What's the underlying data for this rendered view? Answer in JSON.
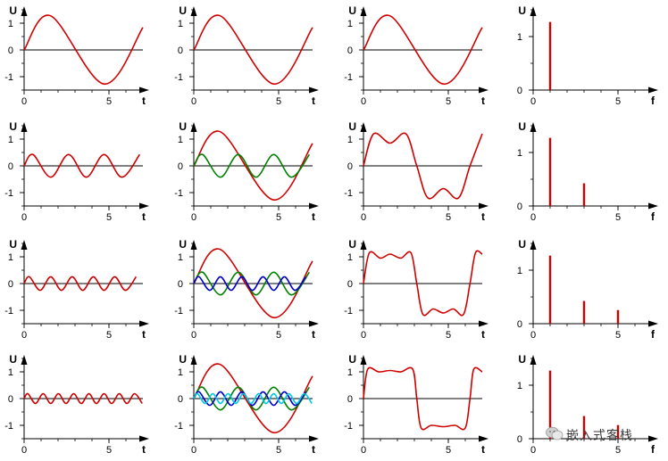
{
  "chart_data": [
    {
      "type": "line",
      "xlabel": "t",
      "ylabel": "U",
      "x_ticks": [
        0,
        5
      ],
      "y_ticks": [
        -1,
        0,
        1
      ],
      "xlim": [
        0,
        7
      ],
      "ylim": [
        -1.5,
        1.5
      ],
      "series": [
        {
          "color": "#d00000",
          "values": [
            [
              0,
              0
            ],
            [
              1.57,
              1.273
            ],
            [
              4.71,
              -1.273
            ],
            [
              7,
              0.84
            ]
          ]
        }
      ]
    },
    {
      "type": "line",
      "xlabel": "t",
      "ylabel": "U",
      "x_ticks": [
        0,
        5
      ],
      "y_ticks": [
        -1,
        0,
        1
      ],
      "xlim": [
        0,
        7
      ],
      "ylim": [
        -1.5,
        1.5
      ],
      "series": [
        {
          "color": "#d00000",
          "values": [
            [
              0,
              0
            ],
            [
              1.57,
              1.273
            ],
            [
              4.71,
              -1.273
            ],
            [
              7,
              0.84
            ]
          ]
        }
      ]
    },
    {
      "type": "line",
      "xlabel": "t",
      "ylabel": "U",
      "x_ticks": [
        0,
        5
      ],
      "y_ticks": [
        -1,
        0,
        1
      ],
      "xlim": [
        0,
        7
      ],
      "ylim": [
        -1.5,
        1.5
      ],
      "series": [
        {
          "color": "#d00000",
          "values": [
            [
              0,
              0
            ],
            [
              1.57,
              1.273
            ],
            [
              4.71,
              -1.273
            ],
            [
              7,
              0.84
            ]
          ]
        }
      ]
    },
    {
      "type": "bar",
      "xlabel": "f",
      "ylabel": "U",
      "x_ticks": [
        0,
        5
      ],
      "y_ticks": [
        0,
        1
      ],
      "xlim": [
        0,
        7
      ],
      "ylim": [
        0,
        1.5
      ],
      "series": [
        {
          "color": "#d00000",
          "values": [
            [
              1,
              1.273
            ]
          ]
        }
      ]
    },
    {
      "type": "line",
      "xlabel": "t",
      "ylabel": "U",
      "x_ticks": [
        0,
        5
      ],
      "y_ticks": [
        -1,
        0,
        1
      ],
      "xlim": [
        0,
        7
      ],
      "ylim": [
        -1.5,
        1.5
      ],
      "series": [
        {
          "color": "#d00000",
          "values": [
            [
              0,
              0
            ],
            [
              0.52,
              0.424
            ],
            [
              1.57,
              -0.424
            ],
            [
              2.62,
              0.424
            ],
            [
              3.67,
              -0.424
            ],
            [
              4.71,
              0.424
            ],
            [
              5.76,
              -0.424
            ],
            [
              6.81,
              0.424
            ]
          ]
        }
      ]
    },
    {
      "type": "line",
      "xlabel": "t",
      "ylabel": "U",
      "x_ticks": [
        0,
        5
      ],
      "y_ticks": [
        -1,
        0,
        1
      ],
      "xlim": [
        0,
        7
      ],
      "ylim": [
        -1.5,
        1.5
      ],
      "series": [
        {
          "color": "#d00000",
          "values": [
            [
              0,
              0
            ],
            [
              1.57,
              1.273
            ],
            [
              4.71,
              -1.273
            ],
            [
              7,
              0.84
            ]
          ]
        },
        {
          "color": "#008000",
          "values": [
            [
              0,
              0
            ],
            [
              0.52,
              0.424
            ],
            [
              1.57,
              -0.424
            ],
            [
              2.62,
              0.424
            ],
            [
              3.67,
              -0.424
            ],
            [
              4.71,
              0.424
            ],
            [
              5.76,
              -0.424
            ],
            [
              6.81,
              0.424
            ]
          ]
        }
      ]
    },
    {
      "type": "line",
      "xlabel": "t",
      "ylabel": "U",
      "x_ticks": [
        0,
        5
      ],
      "y_ticks": [
        -1,
        0,
        1
      ],
      "xlim": [
        0,
        7
      ],
      "ylim": [
        -1.5,
        1.5
      ],
      "series": [
        {
          "color": "#d00000",
          "values": [
            [
              0,
              0
            ],
            [
              0.6,
              1.2
            ],
            [
              1.57,
              0.85
            ],
            [
              2.5,
              1.2
            ],
            [
              3.14,
              0
            ],
            [
              3.8,
              -1.2
            ],
            [
              4.71,
              -0.85
            ],
            [
              5.6,
              -1.2
            ],
            [
              6.28,
              0
            ],
            [
              7,
              1.2
            ]
          ]
        }
      ]
    },
    {
      "type": "bar",
      "xlabel": "f",
      "ylabel": "U",
      "x_ticks": [
        0,
        5
      ],
      "y_ticks": [
        0,
        1
      ],
      "xlim": [
        0,
        7
      ],
      "ylim": [
        0,
        1.5
      ],
      "series": [
        {
          "color": "#d00000",
          "values": [
            [
              1,
              1.273
            ],
            [
              3,
              0.424
            ]
          ]
        }
      ]
    },
    {
      "type": "line",
      "xlabel": "t",
      "ylabel": "U",
      "x_ticks": [
        0,
        5
      ],
      "y_ticks": [
        -1,
        0,
        1
      ],
      "xlim": [
        0,
        7
      ],
      "ylim": [
        -1.5,
        1.5
      ],
      "series": [
        {
          "color": "#d00000",
          "values": [
            [
              0,
              0
            ],
            [
              0.31,
              0.255
            ],
            [
              0.94,
              -0.255
            ],
            [
              1.57,
              0.255
            ],
            [
              2.2,
              -0.255
            ],
            [
              2.83,
              0.255
            ],
            [
              3.46,
              -0.255
            ],
            [
              4.08,
              0.255
            ],
            [
              4.71,
              -0.255
            ],
            [
              5.34,
              0.255
            ],
            [
              5.97,
              -0.255
            ],
            [
              6.6,
              0.255
            ]
          ]
        }
      ]
    },
    {
      "type": "line",
      "xlabel": "t",
      "ylabel": "U",
      "x_ticks": [
        0,
        5
      ],
      "y_ticks": [
        -1,
        0,
        1
      ],
      "xlim": [
        0,
        7
      ],
      "ylim": [
        -1.5,
        1.5
      ],
      "series": [
        {
          "color": "#d00000",
          "values": [
            [
              0,
              0
            ],
            [
              1.57,
              1.273
            ],
            [
              4.71,
              -1.273
            ],
            [
              7,
              0.84
            ]
          ]
        },
        {
          "color": "#008000",
          "values": [
            [
              0,
              0
            ],
            [
              0.52,
              0.424
            ],
            [
              1.57,
              -0.424
            ],
            [
              2.62,
              0.424
            ],
            [
              3.67,
              -0.424
            ],
            [
              4.71,
              0.424
            ],
            [
              5.76,
              -0.424
            ],
            [
              6.81,
              0.424
            ]
          ]
        },
        {
          "color": "#0000cc",
          "values": [
            [
              0,
              0
            ],
            [
              0.31,
              0.255
            ],
            [
              0.94,
              -0.255
            ],
            [
              1.57,
              0.255
            ],
            [
              2.2,
              -0.255
            ],
            [
              2.83,
              0.255
            ],
            [
              3.46,
              -0.255
            ],
            [
              4.08,
              0.255
            ],
            [
              4.71,
              -0.255
            ],
            [
              5.34,
              0.255
            ],
            [
              5.97,
              -0.255
            ],
            [
              6.6,
              0.255
            ]
          ]
        }
      ]
    },
    {
      "type": "line",
      "xlabel": "t",
      "ylabel": "U",
      "x_ticks": [
        0,
        5
      ],
      "y_ticks": [
        -1,
        0,
        1
      ],
      "xlim": [
        0,
        7
      ],
      "ylim": [
        -1.5,
        1.5
      ],
      "series": [
        {
          "color": "#d00000",
          "values": [
            [
              0,
              0
            ],
            [
              0.35,
              1.15
            ],
            [
              1.0,
              0.95
            ],
            [
              1.57,
              1.1
            ],
            [
              2.2,
              0.95
            ],
            [
              2.8,
              1.15
            ],
            [
              3.14,
              0
            ],
            [
              3.5,
              -1.15
            ],
            [
              4.1,
              -0.95
            ],
            [
              4.71,
              -1.1
            ],
            [
              5.3,
              -0.95
            ],
            [
              5.9,
              -1.15
            ],
            [
              6.28,
              0
            ],
            [
              6.6,
              1.15
            ],
            [
              7,
              1.1
            ]
          ]
        }
      ]
    },
    {
      "type": "bar",
      "xlabel": "f",
      "ylabel": "U",
      "x_ticks": [
        0,
        5
      ],
      "y_ticks": [
        0,
        1
      ],
      "xlim": [
        0,
        7
      ],
      "ylim": [
        0,
        1.5
      ],
      "series": [
        {
          "color": "#d00000",
          "values": [
            [
              1,
              1.273
            ],
            [
              3,
              0.424
            ],
            [
              5,
              0.255
            ]
          ]
        }
      ]
    },
    {
      "type": "line",
      "xlabel": "t",
      "ylabel": "U",
      "x_ticks": [
        0,
        5
      ],
      "y_ticks": [
        -1,
        0,
        1
      ],
      "xlim": [
        0,
        7
      ],
      "ylim": [
        -1.5,
        1.5
      ],
      "series": [
        {
          "color": "#d00000",
          "values": [
            [
              0,
              0
            ],
            [
              0.22,
              0.182
            ],
            [
              0.67,
              -0.182
            ],
            [
              1.12,
              0.182
            ],
            [
              1.57,
              -0.182
            ],
            [
              2.02,
              0.182
            ],
            [
              2.47,
              -0.182
            ],
            [
              2.92,
              0.182
            ],
            [
              3.37,
              -0.182
            ],
            [
              3.82,
              0.182
            ],
            [
              4.26,
              -0.182
            ],
            [
              4.71,
              0.182
            ],
            [
              5.16,
              -0.182
            ],
            [
              5.61,
              0.182
            ],
            [
              6.06,
              -0.182
            ],
            [
              6.51,
              0.182
            ],
            [
              6.96,
              -0.182
            ]
          ]
        }
      ]
    },
    {
      "type": "line",
      "xlabel": "t",
      "ylabel": "U",
      "x_ticks": [
        0,
        5
      ],
      "y_ticks": [
        -1,
        0,
        1
      ],
      "xlim": [
        0,
        7
      ],
      "ylim": [
        -1.5,
        1.5
      ],
      "series": [
        {
          "color": "#d00000",
          "values": [
            [
              0,
              0
            ],
            [
              1.57,
              1.273
            ],
            [
              4.71,
              -1.273
            ],
            [
              7,
              0.84
            ]
          ]
        },
        {
          "color": "#008000",
          "values": [
            [
              0,
              0
            ],
            [
              0.52,
              0.424
            ],
            [
              1.57,
              -0.424
            ],
            [
              2.62,
              0.424
            ],
            [
              3.67,
              -0.424
            ],
            [
              4.71,
              0.424
            ],
            [
              5.76,
              -0.424
            ],
            [
              6.81,
              0.424
            ]
          ]
        },
        {
          "color": "#0000cc",
          "values": [
            [
              0,
              0
            ],
            [
              0.31,
              0.255
            ],
            [
              0.94,
              -0.255
            ],
            [
              1.57,
              0.255
            ],
            [
              2.2,
              -0.255
            ],
            [
              2.83,
              0.255
            ],
            [
              3.46,
              -0.255
            ],
            [
              4.08,
              0.255
            ],
            [
              4.71,
              -0.255
            ],
            [
              5.34,
              0.255
            ],
            [
              5.97,
              -0.255
            ],
            [
              6.6,
              0.255
            ]
          ]
        },
        {
          "color": "#00c8e6",
          "values": [
            [
              0,
              0
            ],
            [
              0.22,
              0.182
            ],
            [
              0.67,
              -0.182
            ],
            [
              1.12,
              0.182
            ],
            [
              1.57,
              -0.182
            ],
            [
              2.02,
              0.182
            ],
            [
              2.47,
              -0.182
            ],
            [
              2.92,
              0.182
            ],
            [
              3.37,
              -0.182
            ],
            [
              3.82,
              0.182
            ],
            [
              4.26,
              -0.182
            ],
            [
              4.71,
              0.182
            ],
            [
              5.16,
              -0.182
            ],
            [
              5.61,
              0.182
            ],
            [
              6.06,
              -0.182
            ],
            [
              6.51,
              0.182
            ],
            [
              6.96,
              -0.182
            ]
          ]
        }
      ]
    },
    {
      "type": "line",
      "xlabel": "t",
      "ylabel": "U",
      "x_ticks": [
        0,
        5
      ],
      "y_ticks": [
        -1,
        0,
        1
      ],
      "xlim": [
        0,
        7
      ],
      "ylim": [
        -1.5,
        1.5
      ],
      "series": [
        {
          "color": "#d00000",
          "values": [
            [
              0,
              0
            ],
            [
              0.25,
              1.1
            ],
            [
              0.9,
              1.0
            ],
            [
              1.57,
              1.05
            ],
            [
              2.2,
              1.0
            ],
            [
              2.9,
              1.1
            ],
            [
              3.14,
              0
            ],
            [
              3.4,
              -1.1
            ],
            [
              4.0,
              -1.0
            ],
            [
              4.71,
              -1.05
            ],
            [
              5.4,
              -1.0
            ],
            [
              6.0,
              -1.1
            ],
            [
              6.28,
              0
            ],
            [
              6.5,
              1.1
            ],
            [
              7,
              1.0
            ]
          ]
        }
      ]
    },
    {
      "type": "bar",
      "xlabel": "f",
      "ylabel": "U",
      "x_ticks": [
        0,
        5
      ],
      "y_ticks": [
        0,
        1
      ],
      "xlim": [
        0,
        7
      ],
      "ylim": [
        0,
        1.5
      ],
      "series": [
        {
          "color": "#d00000",
          "values": [
            [
              1,
              1.273
            ],
            [
              3,
              0.424
            ],
            [
              5,
              0.255
            ],
            [
              7,
              0.182
            ]
          ]
        }
      ]
    }
  ],
  "watermark": {
    "text": "嵌入式客栈",
    "icon": "wechat-icon"
  }
}
